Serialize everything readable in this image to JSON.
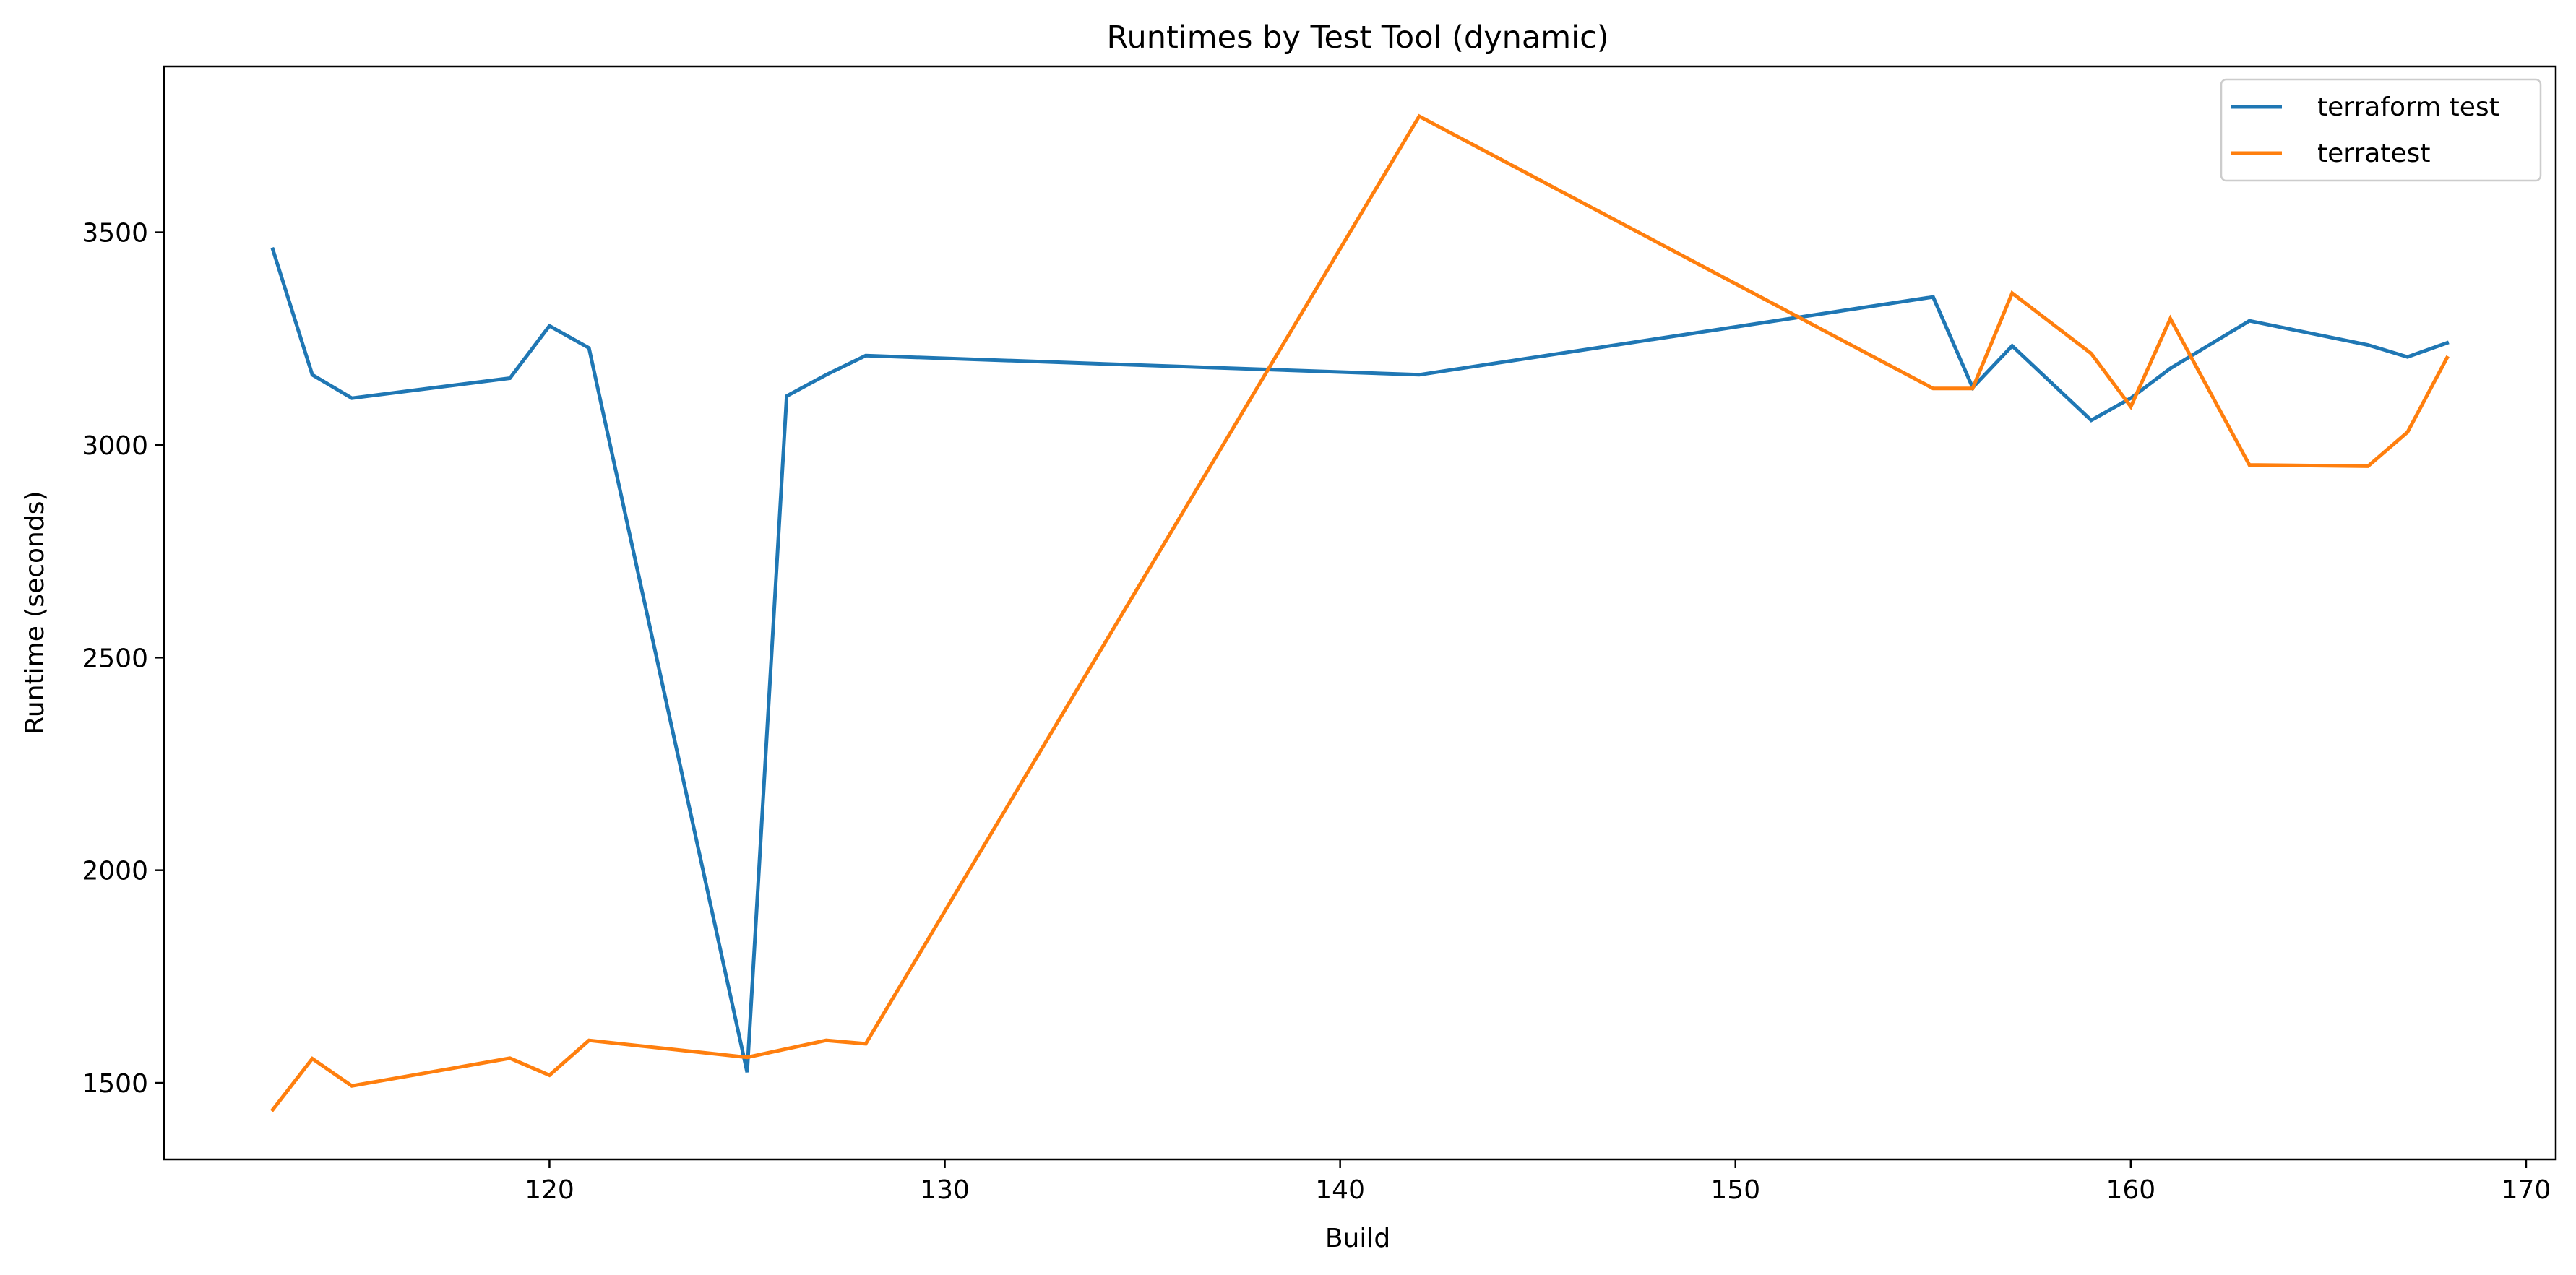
{
  "chart_data": {
    "type": "line",
    "title": "Runtimes by Test Tool (dynamic)",
    "xlabel": "Build",
    "ylabel": "Runtime (seconds)",
    "xlim": [
      110.25,
      170.75
    ],
    "ylim": [
      1320,
      3890
    ],
    "xticks": [
      120,
      130,
      140,
      150,
      160,
      170
    ],
    "yticks": [
      1500,
      2000,
      2500,
      3000,
      3500
    ],
    "grid": false,
    "legend_position": "top-right",
    "series": [
      {
        "name": "terraform test",
        "color": "#1f77b4",
        "x": [
          113,
          114,
          115,
          119,
          120,
          121,
          125,
          126,
          127,
          128,
          142,
          155,
          156,
          157,
          159,
          160,
          161,
          163,
          166,
          167,
          168
        ],
        "y": [
          3460,
          3165,
          3110,
          3157,
          3280,
          3228,
          1525,
          3115,
          3165,
          3210,
          3165,
          3348,
          3135,
          3233,
          3058,
          3110,
          3180,
          3292,
          3235,
          3207,
          3240
        ]
      },
      {
        "name": "terratest",
        "color": "#ff7f0e",
        "x": [
          113,
          114,
          115,
          119,
          120,
          121,
          125,
          127,
          128,
          142,
          155,
          156,
          157,
          159,
          160,
          161,
          163,
          166,
          167,
          168
        ],
        "y": [
          1437,
          1557,
          1493,
          1558,
          1518,
          1600,
          1560,
          1600,
          1592,
          3773,
          3133,
          3133,
          3357,
          3215,
          3090,
          3297,
          2953,
          2950,
          3030,
          3205
        ]
      }
    ]
  }
}
